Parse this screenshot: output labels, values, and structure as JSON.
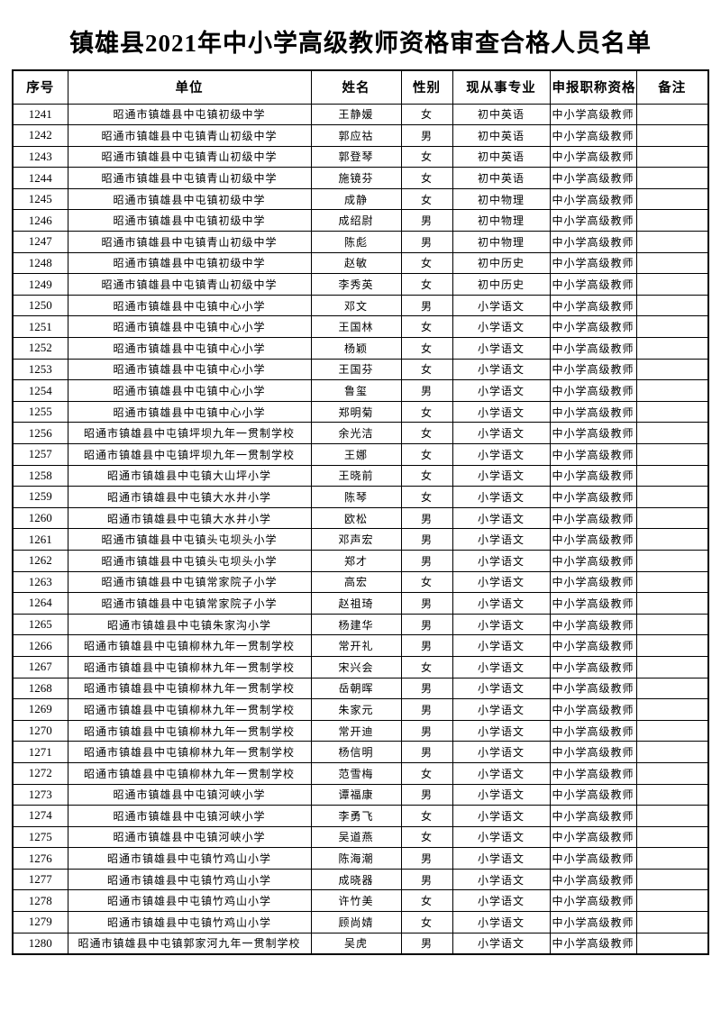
{
  "title": "镇雄县2021年中小学高级教师资格审查合格人员名单",
  "table": {
    "headers": [
      "序号",
      "单位",
      "姓名",
      "性别",
      "现从事专业",
      "申报职称资格",
      "备注"
    ],
    "rows": [
      [
        "1241",
        "昭通市镇雄县中屯镇初级中学",
        "王静媛",
        "女",
        "初中英语",
        "中小学高级教师",
        ""
      ],
      [
        "1242",
        "昭通市镇雄县中屯镇青山初级中学",
        "郭应祜",
        "男",
        "初中英语",
        "中小学高级教师",
        ""
      ],
      [
        "1243",
        "昭通市镇雄县中屯镇青山初级中学",
        "郭登琴",
        "女",
        "初中英语",
        "中小学高级教师",
        ""
      ],
      [
        "1244",
        "昭通市镇雄县中屯镇青山初级中学",
        "施镜芬",
        "女",
        "初中英语",
        "中小学高级教师",
        ""
      ],
      [
        "1245",
        "昭通市镇雄县中屯镇初级中学",
        "成静",
        "女",
        "初中物理",
        "中小学高级教师",
        ""
      ],
      [
        "1246",
        "昭通市镇雄县中屯镇初级中学",
        "成绍尉",
        "男",
        "初中物理",
        "中小学高级教师",
        ""
      ],
      [
        "1247",
        "昭通市镇雄县中屯镇青山初级中学",
        "陈彪",
        "男",
        "初中物理",
        "中小学高级教师",
        ""
      ],
      [
        "1248",
        "昭通市镇雄县中屯镇初级中学",
        "赵敏",
        "女",
        "初中历史",
        "中小学高级教师",
        ""
      ],
      [
        "1249",
        "昭通市镇雄县中屯镇青山初级中学",
        "李秀英",
        "女",
        "初中历史",
        "中小学高级教师",
        ""
      ],
      [
        "1250",
        "昭通市镇雄县中屯镇中心小学",
        "邓文",
        "男",
        "小学语文",
        "中小学高级教师",
        ""
      ],
      [
        "1251",
        "昭通市镇雄县中屯镇中心小学",
        "王国林",
        "女",
        "小学语文",
        "中小学高级教师",
        ""
      ],
      [
        "1252",
        "昭通市镇雄县中屯镇中心小学",
        "杨颖",
        "女",
        "小学语文",
        "中小学高级教师",
        ""
      ],
      [
        "1253",
        "昭通市镇雄县中屯镇中心小学",
        "王国芬",
        "女",
        "小学语文",
        "中小学高级教师",
        ""
      ],
      [
        "1254",
        "昭通市镇雄县中屯镇中心小学",
        "鲁玺",
        "男",
        "小学语文",
        "中小学高级教师",
        ""
      ],
      [
        "1255",
        "昭通市镇雄县中屯镇中心小学",
        "郑明菊",
        "女",
        "小学语文",
        "中小学高级教师",
        ""
      ],
      [
        "1256",
        "昭通市镇雄县中屯镇坪坝九年一贯制学校",
        "余光洁",
        "女",
        "小学语文",
        "中小学高级教师",
        ""
      ],
      [
        "1257",
        "昭通市镇雄县中屯镇坪坝九年一贯制学校",
        "王娜",
        "女",
        "小学语文",
        "中小学高级教师",
        ""
      ],
      [
        "1258",
        "昭通市镇雄县中屯镇大山坪小学",
        "王晓前",
        "女",
        "小学语文",
        "中小学高级教师",
        ""
      ],
      [
        "1259",
        "昭通市镇雄县中屯镇大水井小学",
        "陈琴",
        "女",
        "小学语文",
        "中小学高级教师",
        ""
      ],
      [
        "1260",
        "昭通市镇雄县中屯镇大水井小学",
        "欧松",
        "男",
        "小学语文",
        "中小学高级教师",
        ""
      ],
      [
        "1261",
        "昭通市镇雄县中屯镇头屯坝头小学",
        "邓声宏",
        "男",
        "小学语文",
        "中小学高级教师",
        ""
      ],
      [
        "1262",
        "昭通市镇雄县中屯镇头屯坝头小学",
        "郑才",
        "男",
        "小学语文",
        "中小学高级教师",
        ""
      ],
      [
        "1263",
        "昭通市镇雄县中屯镇常家院子小学",
        "高宏",
        "女",
        "小学语文",
        "中小学高级教师",
        ""
      ],
      [
        "1264",
        "昭通市镇雄县中屯镇常家院子小学",
        "赵祖琦",
        "男",
        "小学语文",
        "中小学高级教师",
        ""
      ],
      [
        "1265",
        "昭通市镇雄县中屯镇朱家沟小学",
        "杨建华",
        "男",
        "小学语文",
        "中小学高级教师",
        ""
      ],
      [
        "1266",
        "昭通市镇雄县中屯镇柳林九年一贯制学校",
        "常开礼",
        "男",
        "小学语文",
        "中小学高级教师",
        ""
      ],
      [
        "1267",
        "昭通市镇雄县中屯镇柳林九年一贯制学校",
        "宋兴会",
        "女",
        "小学语文",
        "中小学高级教师",
        ""
      ],
      [
        "1268",
        "昭通市镇雄县中屯镇柳林九年一贯制学校",
        "岳朝晖",
        "男",
        "小学语文",
        "中小学高级教师",
        ""
      ],
      [
        "1269",
        "昭通市镇雄县中屯镇柳林九年一贯制学校",
        "朱家元",
        "男",
        "小学语文",
        "中小学高级教师",
        ""
      ],
      [
        "1270",
        "昭通市镇雄县中屯镇柳林九年一贯制学校",
        "常开迪",
        "男",
        "小学语文",
        "中小学高级教师",
        ""
      ],
      [
        "1271",
        "昭通市镇雄县中屯镇柳林九年一贯制学校",
        "杨信明",
        "男",
        "小学语文",
        "中小学高级教师",
        ""
      ],
      [
        "1272",
        "昭通市镇雄县中屯镇柳林九年一贯制学校",
        "范雪梅",
        "女",
        "小学语文",
        "中小学高级教师",
        ""
      ],
      [
        "1273",
        "昭通市镇雄县中屯镇河峡小学",
        "谭福康",
        "男",
        "小学语文",
        "中小学高级教师",
        ""
      ],
      [
        "1274",
        "昭通市镇雄县中屯镇河峡小学",
        "李勇飞",
        "女",
        "小学语文",
        "中小学高级教师",
        ""
      ],
      [
        "1275",
        "昭通市镇雄县中屯镇河峡小学",
        "吴道燕",
        "女",
        "小学语文",
        "中小学高级教师",
        ""
      ],
      [
        "1276",
        "昭通市镇雄县中屯镇竹鸡山小学",
        "陈海潮",
        "男",
        "小学语文",
        "中小学高级教师",
        ""
      ],
      [
        "1277",
        "昭通市镇雄县中屯镇竹鸡山小学",
        "成晓器",
        "男",
        "小学语文",
        "中小学高级教师",
        ""
      ],
      [
        "1278",
        "昭通市镇雄县中屯镇竹鸡山小学",
        "许竹美",
        "女",
        "小学语文",
        "中小学高级教师",
        ""
      ],
      [
        "1279",
        "昭通市镇雄县中屯镇竹鸡山小学",
        "顾尚婧",
        "女",
        "小学语文",
        "中小学高级教师",
        ""
      ],
      [
        "1280",
        "昭通市镇雄县中屯镇郭家河九年一贯制学校",
        "吴虎",
        "男",
        "小学语文",
        "中小学高级教师",
        ""
      ]
    ]
  }
}
